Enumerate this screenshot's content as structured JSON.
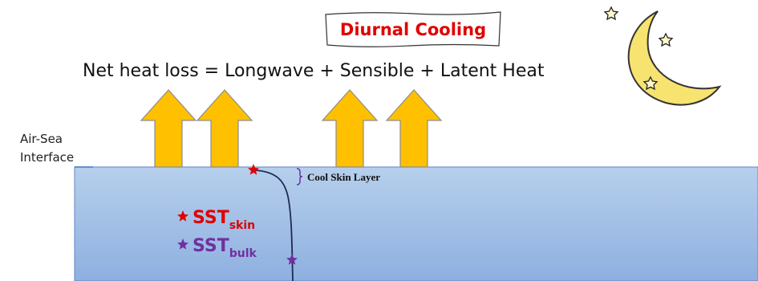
{
  "title": "Diurnal Cooling",
  "equation": "Net heat loss = Longwave + Sensible + Latent Heat",
  "interface_label": [
    "Air-Sea",
    "Interface"
  ],
  "layer_label": "Cool Skin Layer",
  "legend": [
    {
      "base": "SST",
      "sub": "skin"
    },
    {
      "base": "SST",
      "sub": "bulk"
    }
  ]
}
